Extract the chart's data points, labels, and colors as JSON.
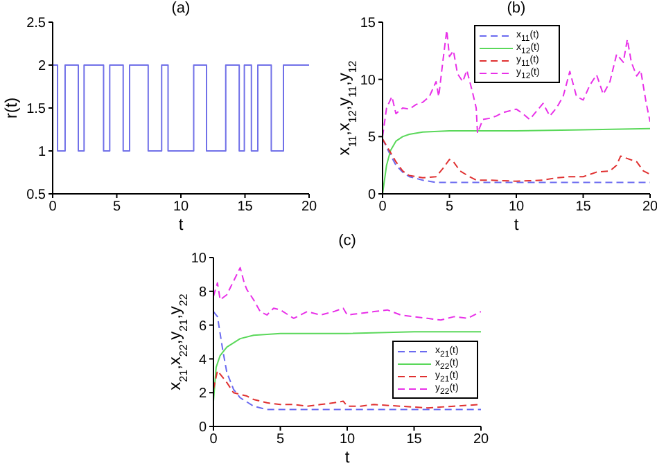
{
  "chart_data": [
    {
      "type": "step",
      "title": "(a)",
      "xlabel": "t",
      "ylabel": "r(t)",
      "xlim": [
        0,
        20
      ],
      "xticks": [
        0,
        5,
        10,
        15,
        20
      ],
      "ylim": [
        0.5,
        2.5
      ],
      "yticks": [
        0.5,
        1,
        1.5,
        2,
        2.5
      ],
      "color": "#7070e8",
      "x": [
        0,
        0.38,
        0.97,
        2.0,
        2.45,
        3.97,
        4.45,
        5.5,
        6.0,
        7.45,
        8.5,
        9.0,
        11.0,
        12.0,
        13.5,
        14.55,
        14.95,
        15.5,
        16.0,
        17.05,
        18.0,
        20
      ],
      "values": [
        2,
        1,
        2,
        1,
        2,
        1,
        2,
        1,
        2,
        1,
        2,
        1,
        2,
        1,
        2,
        1,
        2,
        1,
        2,
        1,
        2,
        2
      ]
    },
    {
      "type": "line",
      "title": "(b)",
      "xlabel": "t",
      "ylabel": "x$_{11}$,x$_{12}$,y$_{11}$,y$_{12}$",
      "xlim": [
        0,
        20
      ],
      "xticks": [
        0,
        5,
        10,
        15,
        20
      ],
      "ylim": [
        0,
        15
      ],
      "yticks": [
        0,
        5,
        10,
        15
      ],
      "legend": "top",
      "series": [
        {
          "name": "x$_{11}$(t)",
          "color": "#6a6af0",
          "line_style": "dashed",
          "x": [
            0,
            0.5,
            1,
            1.5,
            2,
            3,
            4,
            20
          ],
          "values": [
            4.8,
            3.6,
            2.5,
            1.9,
            1.5,
            1.2,
            1.0,
            1.0
          ]
        },
        {
          "name": "x$_{12}$(t)",
          "color": "#5ad85a",
          "line_style": "solid",
          "x": [
            0,
            0.3,
            0.6,
            1,
            1.5,
            2,
            3,
            5,
            10,
            15,
            20
          ],
          "values": [
            0,
            2.5,
            3.8,
            4.6,
            5.0,
            5.2,
            5.4,
            5.5,
            5.5,
            5.6,
            5.7
          ]
        },
        {
          "name": "y$_{11}$(t)",
          "color": "#e03030",
          "line_style": "dashed",
          "x": [
            0,
            0.5,
            1,
            1.5,
            2,
            3,
            4,
            4.5,
            5,
            5.3,
            5.8,
            6.5,
            7,
            8,
            10,
            12,
            13,
            14,
            15,
            16,
            17,
            17.5,
            17.8,
            18.5,
            19,
            19.5,
            20
          ],
          "values": [
            4.8,
            3.8,
            2.8,
            2.0,
            1.6,
            1.4,
            1.5,
            2.2,
            3.0,
            2.8,
            2.0,
            1.5,
            1.2,
            1.2,
            1.1,
            1.2,
            1.4,
            1.5,
            1.5,
            1.9,
            2.0,
            2.5,
            3.3,
            3.0,
            2.8,
            2.0,
            1.7
          ]
        },
        {
          "name": "y$_{12}$(t)",
          "color": "#e830e8",
          "line_style": "dashed",
          "x": [
            0,
            0.3,
            0.7,
            1,
            1.5,
            2,
            2.5,
            3,
            3.5,
            4,
            4.2,
            4.5,
            4.8,
            5,
            5.3,
            5.6,
            6,
            6.3,
            6.7,
            7,
            7.1,
            7.5,
            8,
            8.5,
            9,
            10,
            10.5,
            11,
            11.5,
            12,
            12.5,
            13,
            13.5,
            14,
            14.5,
            15,
            15.5,
            16,
            16.5,
            17,
            17.5,
            18,
            18.3,
            18.6,
            19,
            19.3,
            19.7,
            20
          ],
          "values": [
            5,
            7.5,
            8.5,
            7.0,
            7.5,
            7.4,
            7.8,
            8.0,
            8.5,
            9.8,
            8.5,
            11.5,
            14.3,
            12,
            12.5,
            10.5,
            9.8,
            10.8,
            9,
            7.5,
            5.3,
            6.5,
            6.6,
            6.8,
            7.1,
            7.4,
            7.0,
            6.5,
            7.2,
            7.9,
            6.8,
            7.5,
            8.5,
            10.7,
            8.5,
            8.2,
            9.5,
            10.4,
            8.7,
            9.8,
            12.2,
            11.5,
            13.5,
            11.5,
            10.3,
            10.8,
            8,
            6.3
          ]
        }
      ]
    },
    {
      "type": "line",
      "title": "(c)",
      "xlabel": "t",
      "ylabel": "x$_{21}$,x$_{22}$,y$_{21}$,y$_{22}$",
      "xlim": [
        0,
        20
      ],
      "xticks": [
        0,
        5,
        10,
        15,
        20
      ],
      "ylim": [
        0,
        10
      ],
      "yticks": [
        0,
        2,
        4,
        6,
        8,
        10
      ],
      "legend": "bottom right",
      "series": [
        {
          "name": "x$_{21}$(t)",
          "color": "#6a6af0",
          "line_style": "dashed",
          "x": [
            0,
            0.3,
            0.7,
            1,
            1.5,
            2,
            3,
            4,
            20
          ],
          "values": [
            6.8,
            6.5,
            4.5,
            3.2,
            2.2,
            1.7,
            1.2,
            1.0,
            1.0
          ]
        },
        {
          "name": "x$_{22}$(t)",
          "color": "#5ad85a",
          "line_style": "solid",
          "x": [
            0,
            0.2,
            0.5,
            1,
            2,
            3,
            5,
            10,
            15,
            20
          ],
          "values": [
            1.5,
            3.5,
            4.2,
            4.7,
            5.2,
            5.4,
            5.5,
            5.5,
            5.6,
            5.6
          ]
        },
        {
          "name": "y$_{21}$(t)",
          "color": "#e03030",
          "line_style": "dashed",
          "x": [
            0,
            0.3,
            0.5,
            1,
            1.5,
            2,
            2.5,
            3,
            4,
            5,
            6,
            7,
            8,
            9,
            9.7,
            10,
            11,
            12,
            14,
            16,
            18,
            20
          ],
          "values": [
            2.2,
            3.3,
            3.1,
            2.6,
            2.0,
            1.9,
            1.8,
            1.6,
            1.4,
            1.3,
            1.3,
            1.2,
            1.3,
            1.4,
            1.5,
            1.2,
            1.2,
            1.3,
            1.2,
            1.1,
            1.2,
            1.3
          ]
        },
        {
          "name": "y$_{22}$(t)",
          "color": "#e830e8",
          "line_style": "dashed",
          "x": [
            0,
            0.3,
            0.5,
            1,
            1.5,
            2,
            2.3,
            2.5,
            3,
            3.5,
            4,
            4.5,
            5,
            6,
            7,
            8,
            9,
            9.7,
            10,
            11,
            12,
            13,
            14,
            15,
            16,
            17,
            18,
            19,
            20
          ],
          "values": [
            7.7,
            8.5,
            7.5,
            7.8,
            8.6,
            9.4,
            8.5,
            8.1,
            7.5,
            6.8,
            6.6,
            7.0,
            6.9,
            6.4,
            6.8,
            6.6,
            6.8,
            7.0,
            6.6,
            6.7,
            6.8,
            6.9,
            6.6,
            6.5,
            6.4,
            6.3,
            6.5,
            6.4,
            6.8
          ]
        }
      ]
    }
  ]
}
